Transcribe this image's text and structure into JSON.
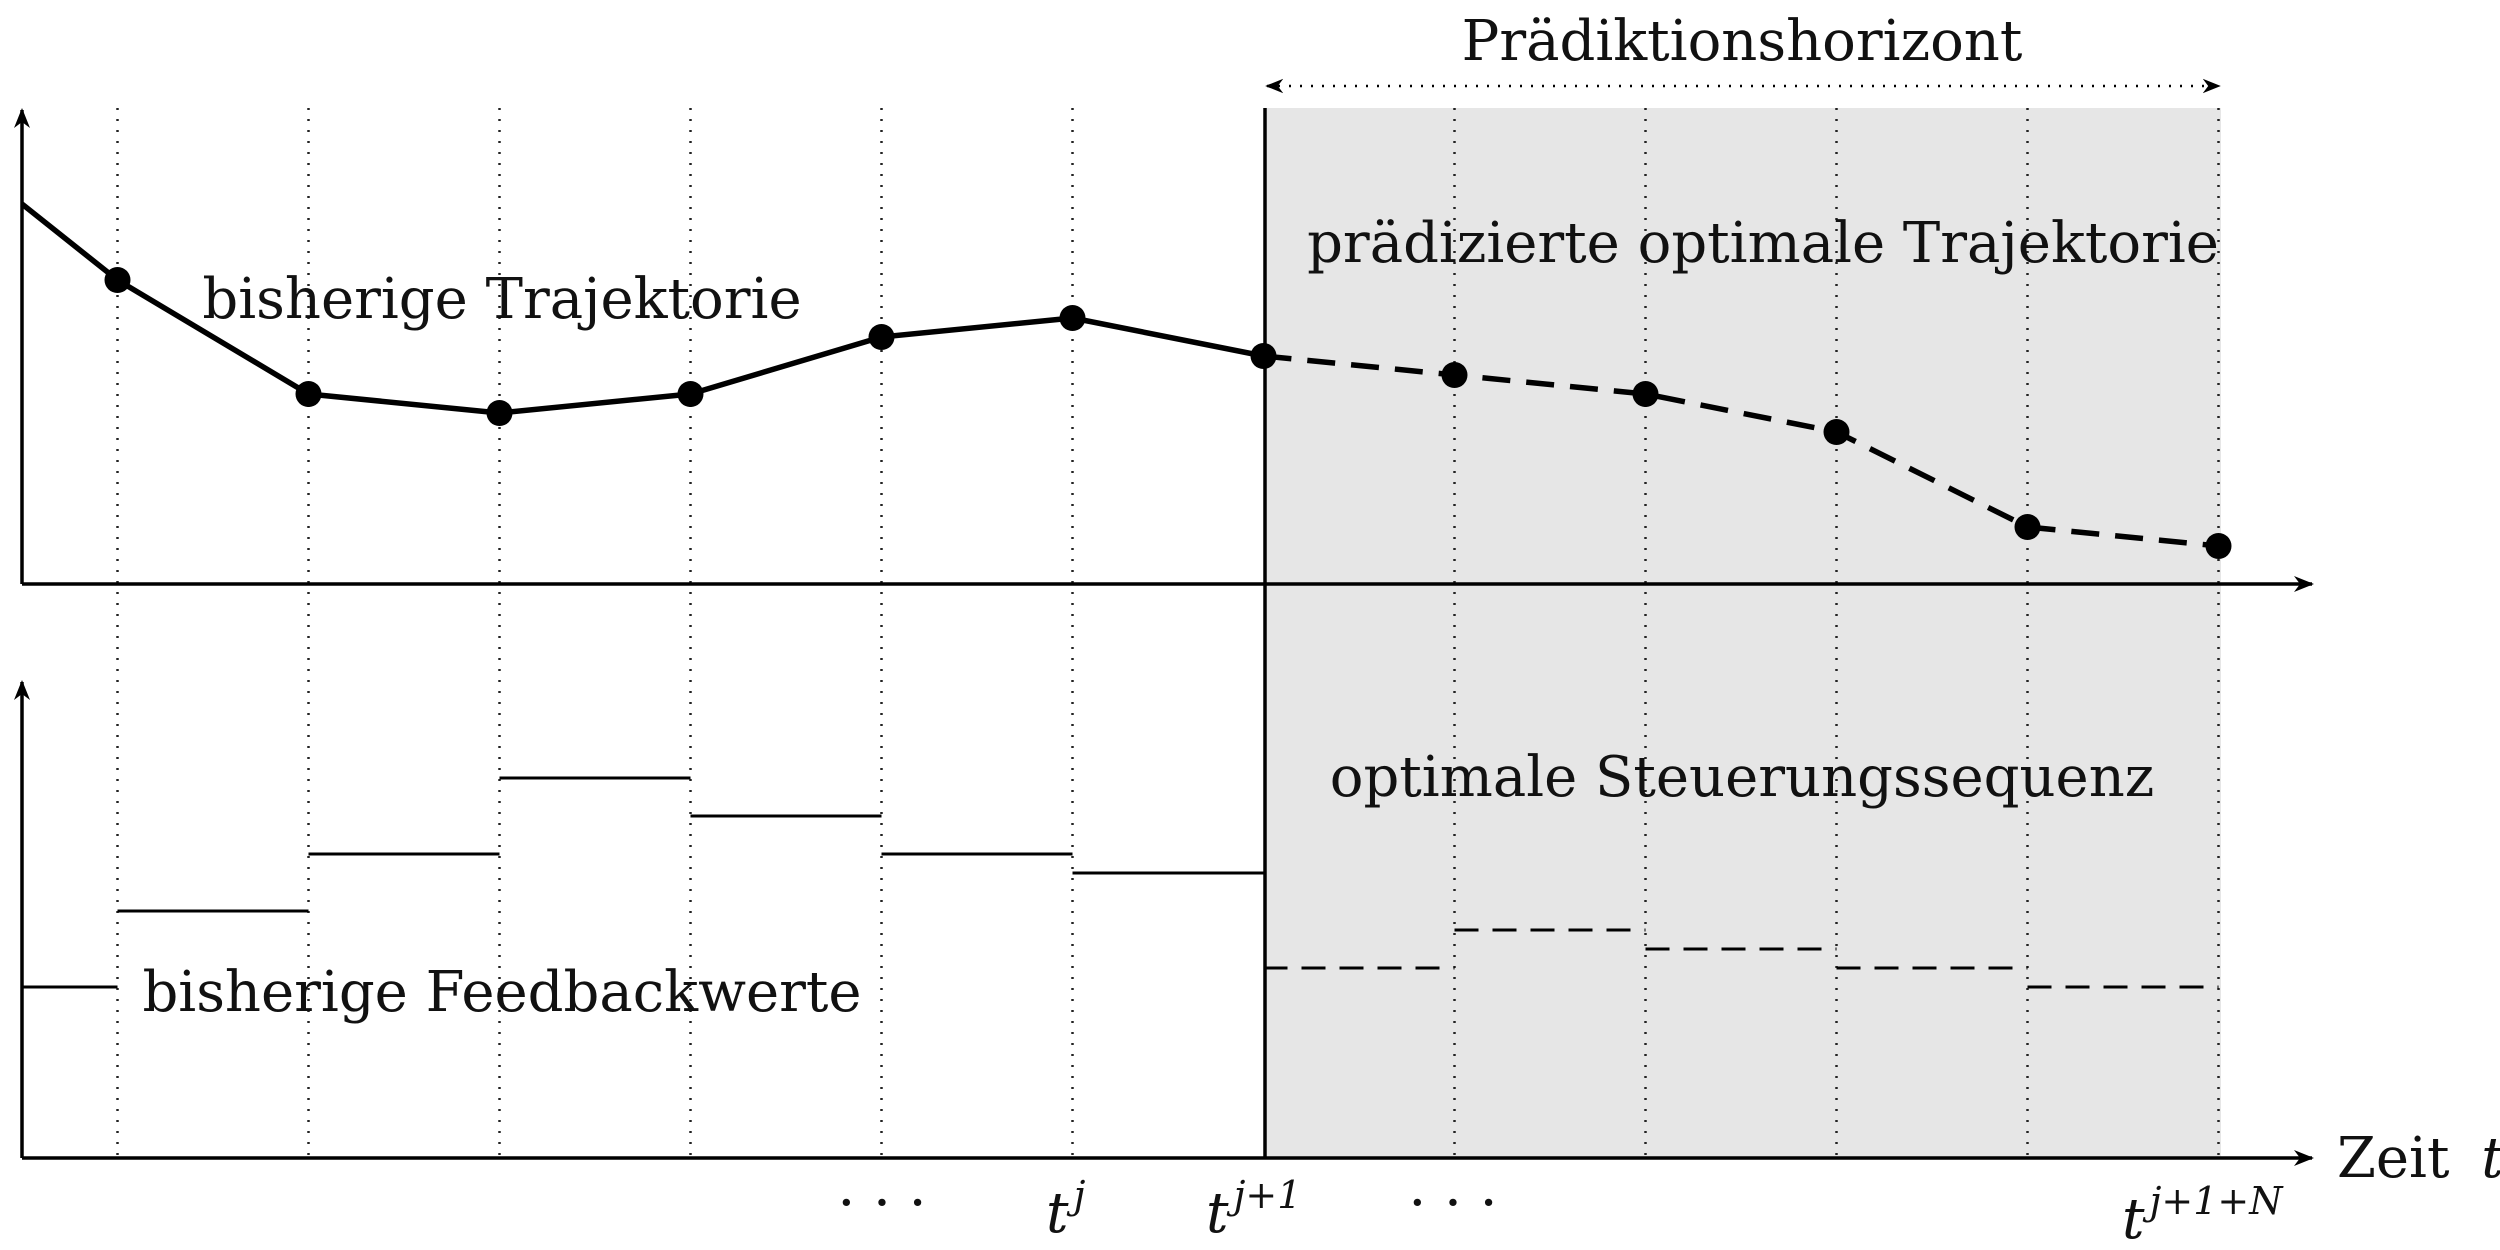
{
  "labels": {
    "prediction_horizon": "Prädiktionshorizont",
    "past_trajectory": "bisherige Trajektorie",
    "predicted_trajectory": "prädizierte optimale Trajektorie",
    "optimal_control": "optimale Steuerungssequenz",
    "past_feedback": "bisherige Feedbackwerte",
    "time_axis": "Zeit",
    "time_symbol": "t"
  },
  "ticks": {
    "ellipsis_left": "· · ·",
    "ellipsis_right": "· · ·",
    "tj_base": "t",
    "tj_sup": "j",
    "tj1_base": "t",
    "tj1_sup": "j+1",
    "tjN_base": "t",
    "tjN_sup": "j+1+N"
  },
  "colors": {
    "prediction_region": "#e6e6e6",
    "ink": "#000000"
  },
  "chart_data": {
    "type": "line",
    "x": [
      0,
      1,
      2,
      3,
      4,
      5,
      6,
      7,
      8,
      9,
      10,
      11,
      12
    ],
    "trajectory": {
      "past": [
        {
          "x": 0,
          "y": 4.0
        },
        {
          "x": 0.5,
          "y": 3.2
        },
        {
          "x": 1.5,
          "y": 2.0
        },
        {
          "x": 2.5,
          "y": 1.8
        },
        {
          "x": 3.5,
          "y": 2.0
        },
        {
          "x": 4.5,
          "y": 2.6
        },
        {
          "x": 5.5,
          "y": 2.8
        },
        {
          "x": 6.5,
          "y": 2.4
        }
      ],
      "predicted": [
        {
          "x": 6.5,
          "y": 2.4
        },
        {
          "x": 7.5,
          "y": 2.2
        },
        {
          "x": 8.5,
          "y": 2.0
        },
        {
          "x": 9.5,
          "y": 1.6
        },
        {
          "x": 10.5,
          "y": 0.6
        },
        {
          "x": 11.5,
          "y": 0.4
        }
      ],
      "ylim": [
        0,
        5
      ]
    },
    "control": {
      "past": [
        {
          "from": 0,
          "to": 0.5,
          "value": 1.8
        },
        {
          "from": 0.5,
          "to": 1.5,
          "value": 2.6
        },
        {
          "from": 1.5,
          "to": 2.5,
          "value": 3.2
        },
        {
          "from": 2.5,
          "to": 3.5,
          "value": 4.0
        },
        {
          "from": 3.5,
          "to": 4.5,
          "value": 3.6
        },
        {
          "from": 4.5,
          "to": 5.5,
          "value": 3.2
        },
        {
          "from": 5.5,
          "to": 6.5,
          "value": 3.0
        }
      ],
      "predicted": [
        {
          "from": 6.5,
          "to": 7.5,
          "value": 2.0
        },
        {
          "from": 7.5,
          "to": 8.5,
          "value": 2.4
        },
        {
          "from": 8.5,
          "to": 9.5,
          "value": 2.2
        },
        {
          "from": 9.5,
          "to": 10.5,
          "value": 2.0
        },
        {
          "from": 10.5,
          "to": 11.5,
          "value": 1.8
        }
      ],
      "ylim": [
        0,
        5
      ]
    },
    "grid_x": [
      0.5,
      1.5,
      2.5,
      3.5,
      4.5,
      5.5,
      7.5,
      8.5,
      9.5,
      10.5,
      11.5
    ],
    "horizon": [
      6.5,
      11.5
    ]
  }
}
